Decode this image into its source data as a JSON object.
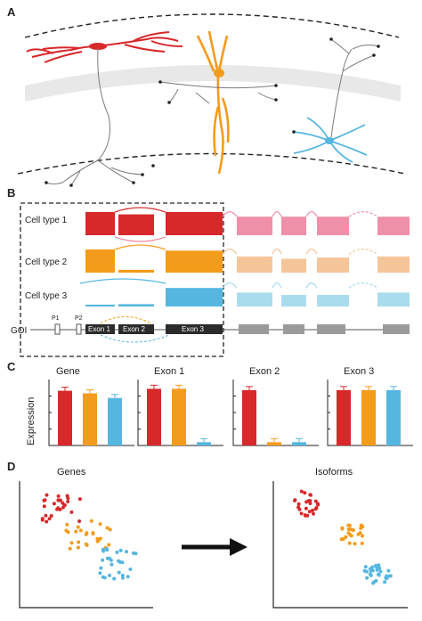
{
  "panels": {
    "a": "A",
    "b": "B",
    "c": "C",
    "d": "D"
  },
  "colors": {
    "type1": "#d7282a",
    "type2": "#f39b1b",
    "type3": "#55b6e0",
    "type1_light": "#ef8fa8",
    "type2_light": "#f5c59a",
    "type3_light": "#a9dcec",
    "exon_dark": "#2b2b2b",
    "exon_grey": "#9a9a9a",
    "neuron_grey": "#7a7a7a"
  },
  "panel_b": {
    "cell_types": [
      "Cell type 1",
      "Cell type 2",
      "Cell type 3"
    ],
    "goi_label": "GOI",
    "promoters": [
      "P1",
      "P2"
    ],
    "exons": [
      "Exon 1",
      "Exon 2",
      "Exon 3"
    ]
  },
  "panel_c": {
    "ylabel": "Expression",
    "chart_data": [
      {
        "type": "bar",
        "title": "Gene",
        "categories": [
          "Cell type 1",
          "Cell type 2",
          "Cell type 3"
        ],
        "values": [
          0.83,
          0.79,
          0.72
        ],
        "ylim": [
          0,
          1
        ]
      },
      {
        "type": "bar",
        "title": "Exon 1",
        "categories": [
          "Cell type 1",
          "Cell type 2",
          "Cell type 3"
        ],
        "values": [
          0.86,
          0.86,
          0.05
        ],
        "ylim": [
          0,
          1
        ]
      },
      {
        "type": "bar",
        "title": "Exon 2",
        "categories": [
          "Cell type 1",
          "Cell type 2",
          "Cell type 3"
        ],
        "values": [
          0.84,
          0.05,
          0.05
        ],
        "ylim": [
          0,
          1
        ]
      },
      {
        "type": "bar",
        "title": "Exon 3",
        "categories": [
          "Cell type 1",
          "Cell type 2",
          "Cell type 3"
        ],
        "values": [
          0.84,
          0.84,
          0.84
        ],
        "ylim": [
          0,
          1
        ]
      }
    ]
  },
  "panel_d": {
    "left_title": "Genes",
    "right_title": "Isoforms"
  }
}
